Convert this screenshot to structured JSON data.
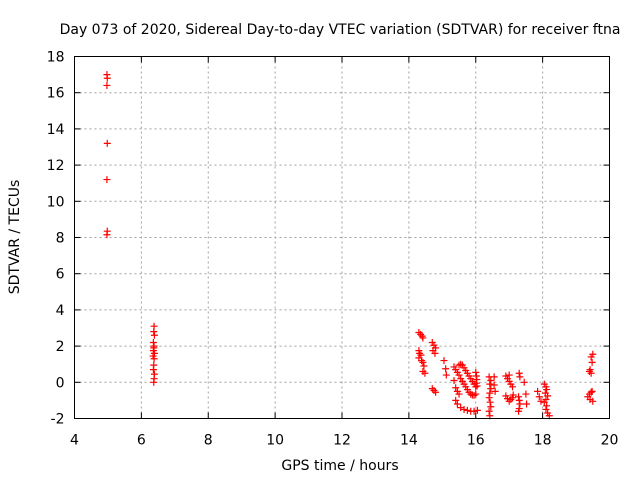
{
  "chart_data": {
    "type": "scatter",
    "title": "Day 073 of 2020, Sidereal Day-to-day VTEC variation (SDTVAR) for receiver ftna",
    "xlabel": "GPS time / hours",
    "ylabel": "SDTVAR / TECUs",
    "xlim": [
      4,
      20
    ],
    "ylim": [
      -2,
      18
    ],
    "xticks": [
      "4",
      "6",
      "8",
      "10",
      "12",
      "14",
      "16",
      "18",
      "20"
    ],
    "yticks": [
      "-2",
      "0",
      "2",
      "4",
      "6",
      "8",
      "10",
      "12",
      "14",
      "16",
      "18"
    ],
    "grid": true,
    "marker": "+",
    "color": "#ff0000",
    "series": [
      {
        "name": "SDTVAR",
        "points": [
          [
            4.97,
            17.0
          ],
          [
            4.98,
            16.8
          ],
          [
            4.97,
            16.4
          ],
          [
            4.98,
            13.2
          ],
          [
            4.97,
            11.2
          ],
          [
            4.98,
            8.35
          ],
          [
            4.97,
            8.15
          ],
          [
            6.38,
            3.1
          ],
          [
            6.37,
            2.8
          ],
          [
            6.39,
            2.6
          ],
          [
            6.36,
            2.2
          ],
          [
            6.38,
            2.0
          ],
          [
            6.37,
            1.9
          ],
          [
            6.36,
            1.75
          ],
          [
            6.39,
            1.6
          ],
          [
            6.35,
            1.45
          ],
          [
            6.38,
            1.3
          ],
          [
            6.37,
            0.95
          ],
          [
            6.36,
            0.7
          ],
          [
            6.39,
            0.45
          ],
          [
            6.38,
            0.2
          ],
          [
            6.37,
            0.0
          ],
          [
            14.3,
            2.75
          ],
          [
            14.35,
            2.65
          ],
          [
            14.4,
            2.55
          ],
          [
            14.42,
            2.45
          ],
          [
            14.3,
            1.75
          ],
          [
            14.32,
            1.6
          ],
          [
            14.36,
            1.5
          ],
          [
            14.3,
            1.35
          ],
          [
            14.38,
            1.2
          ],
          [
            14.42,
            1.1
          ],
          [
            14.45,
            0.9
          ],
          [
            14.42,
            0.6
          ],
          [
            14.48,
            0.5
          ],
          [
            14.7,
            2.2
          ],
          [
            14.75,
            2.05
          ],
          [
            14.8,
            1.9
          ],
          [
            14.72,
            1.75
          ],
          [
            14.78,
            1.6
          ],
          [
            14.7,
            -0.35
          ],
          [
            14.75,
            -0.45
          ],
          [
            14.8,
            -0.55
          ],
          [
            15.05,
            1.2
          ],
          [
            15.1,
            0.75
          ],
          [
            15.12,
            0.4
          ],
          [
            15.35,
            0.85
          ],
          [
            15.4,
            0.7
          ],
          [
            15.45,
            0.55
          ],
          [
            15.5,
            0.4
          ],
          [
            15.55,
            0.2
          ],
          [
            15.6,
            0.05
          ],
          [
            15.65,
            -0.1
          ],
          [
            15.7,
            -0.25
          ],
          [
            15.75,
            -0.4
          ],
          [
            15.8,
            -0.55
          ],
          [
            15.85,
            -0.65
          ],
          [
            15.9,
            -0.7
          ],
          [
            15.95,
            -0.72
          ],
          [
            16.0,
            -0.65
          ],
          [
            15.6,
            0.95
          ],
          [
            15.65,
            0.8
          ],
          [
            15.7,
            0.65
          ],
          [
            15.75,
            0.5
          ],
          [
            15.8,
            0.35
          ],
          [
            15.85,
            0.2
          ],
          [
            15.9,
            0.05
          ],
          [
            15.95,
            -0.1
          ],
          [
            16.0,
            -0.25
          ],
          [
            15.5,
            0.95
          ],
          [
            15.55,
            1.0
          ],
          [
            15.4,
            -1.0
          ],
          [
            15.45,
            -1.2
          ],
          [
            15.55,
            -1.4
          ],
          [
            15.65,
            -1.5
          ],
          [
            15.75,
            -1.55
          ],
          [
            15.85,
            -1.6
          ],
          [
            15.95,
            -1.6
          ],
          [
            16.05,
            -1.55
          ],
          [
            15.35,
            0.1
          ],
          [
            15.4,
            -0.3
          ],
          [
            15.45,
            -0.5
          ],
          [
            15.5,
            -0.65
          ],
          [
            16.0,
            0.55
          ],
          [
            16.02,
            0.35
          ],
          [
            16.03,
            0.15
          ],
          [
            16.02,
            -0.05
          ],
          [
            16.04,
            -0.2
          ],
          [
            16.4,
            0.3
          ],
          [
            16.45,
            0.1
          ],
          [
            16.42,
            -0.1
          ],
          [
            16.45,
            -0.35
          ],
          [
            16.42,
            -0.6
          ],
          [
            16.4,
            -0.85
          ],
          [
            16.43,
            -1.1
          ],
          [
            16.45,
            -1.35
          ],
          [
            16.4,
            -1.6
          ],
          [
            16.42,
            -1.85
          ],
          [
            16.55,
            0.3
          ],
          [
            16.55,
            -0.15
          ],
          [
            16.58,
            -0.5
          ],
          [
            16.9,
            0.35
          ],
          [
            16.95,
            0.2
          ],
          [
            17.0,
            0.05
          ],
          [
            17.05,
            -0.1
          ],
          [
            17.1,
            -0.25
          ],
          [
            17.0,
            0.4
          ],
          [
            16.9,
            -0.75
          ],
          [
            16.95,
            -0.9
          ],
          [
            17.0,
            -1.05
          ],
          [
            17.05,
            -0.95
          ],
          [
            17.1,
            -0.85
          ],
          [
            17.12,
            -0.7
          ],
          [
            17.3,
            0.5
          ],
          [
            17.32,
            0.3
          ],
          [
            17.28,
            -0.8
          ],
          [
            17.3,
            -1.0
          ],
          [
            17.32,
            -1.2
          ],
          [
            17.3,
            -1.45
          ],
          [
            17.28,
            -1.6
          ],
          [
            17.45,
            0.0
          ],
          [
            17.5,
            -0.65
          ],
          [
            17.52,
            -1.2
          ],
          [
            17.85,
            -0.5
          ],
          [
            17.9,
            -0.8
          ],
          [
            17.95,
            -1.05
          ],
          [
            18.05,
            -0.1
          ],
          [
            18.1,
            -0.25
          ],
          [
            18.12,
            -0.4
          ],
          [
            18.08,
            -0.6
          ],
          [
            18.15,
            -0.75
          ],
          [
            18.1,
            -0.95
          ],
          [
            18.05,
            -1.1
          ],
          [
            18.12,
            -1.3
          ],
          [
            18.1,
            -1.5
          ],
          [
            18.15,
            -1.7
          ],
          [
            18.2,
            -1.85
          ],
          [
            19.35,
            -0.8
          ],
          [
            19.4,
            -0.65
          ],
          [
            19.45,
            -0.55
          ],
          [
            19.42,
            -0.95
          ],
          [
            19.48,
            -0.5
          ],
          [
            19.5,
            -1.05
          ],
          [
            19.4,
            0.6
          ],
          [
            19.45,
            0.5
          ],
          [
            19.42,
            0.7
          ],
          [
            19.48,
            1.1
          ],
          [
            19.45,
            1.4
          ],
          [
            19.5,
            1.55
          ]
        ]
      }
    ]
  }
}
